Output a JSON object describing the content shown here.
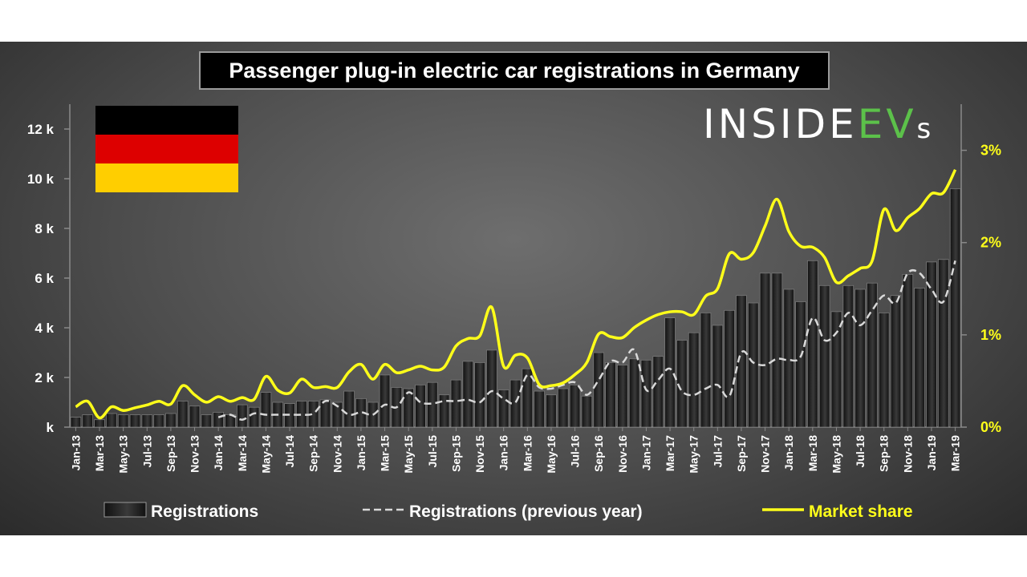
{
  "colors": {
    "bar": "#111111",
    "bar_highlight": "#3a3a3a",
    "market_share": "#ffff1a",
    "previous_year": "#d9d9d9",
    "flag_black": "#000000",
    "flag_red": "#dd0000",
    "flag_gold": "#ffce00",
    "logo_green": "#5cc14a"
  },
  "logo": {
    "part1": "INSIDE",
    "part2": "EV",
    "part3": "s"
  },
  "legend": {
    "registrations": "Registrations",
    "previous_year": "Registrations (previous year)",
    "market_share": "Market share"
  },
  "chart_data": {
    "type": "bar",
    "title": "Passenger plug-in electric car registrations in Germany",
    "xlabel": "",
    "ylabel": "",
    "ylim": [
      0,
      13000
    ],
    "y2lim": [
      0,
      3.5
    ],
    "left_ticks": [
      {
        "value": 0,
        "label": "k"
      },
      {
        "value": 2000,
        "label": "2 k"
      },
      {
        "value": 4000,
        "label": "4 k"
      },
      {
        "value": 6000,
        "label": "6 k"
      },
      {
        "value": 8000,
        "label": "8 k"
      },
      {
        "value": 10000,
        "label": "10 k"
      },
      {
        "value": 12000,
        "label": "12 k"
      }
    ],
    "right_ticks": [
      {
        "value": 0,
        "label": "0%"
      },
      {
        "value": 1,
        "label": "1%"
      },
      {
        "value": 2,
        "label": "2%"
      },
      {
        "value": 3,
        "label": "3%"
      }
    ],
    "x_tick_labels": [
      "Jan-13",
      "Mar-13",
      "May-13",
      "Jul-13",
      "Sep-13",
      "Nov-13",
      "Jan-14",
      "Mar-14",
      "May-14",
      "Jul-14",
      "Sep-14",
      "Nov-14",
      "Jan-15",
      "Mar-15",
      "May-15",
      "Jul-15",
      "Sep-15",
      "Nov-15",
      "Jan-16",
      "Mar-16",
      "May-16",
      "Jul-16",
      "Sep-16",
      "Nov-16",
      "Jan-17",
      "Mar-17",
      "May-17",
      "Jul-17",
      "Sep-17",
      "Nov-17",
      "Jan-18",
      "Mar-18",
      "May-18",
      "Jul-18",
      "Sep-18",
      "Nov-18",
      "Jan-19",
      "Mar-19"
    ],
    "series": [
      {
        "name": "Registrations",
        "type": "bar",
        "axis": "left",
        "values": [
          400,
          500,
          300,
          550,
          500,
          500,
          500,
          500,
          550,
          1050,
          850,
          500,
          600,
          500,
          900,
          800,
          1400,
          1000,
          950,
          1050,
          1050,
          1100,
          1000,
          1450,
          1150,
          1000,
          2100,
          1600,
          1550,
          1700,
          1800,
          1300,
          1900,
          2650,
          2600,
          3100,
          1500,
          1900,
          2350,
          1450,
          1300,
          1550,
          1700,
          1250,
          3000,
          2600,
          2500,
          2750,
          2700,
          2850,
          4400,
          3500,
          3800,
          4600,
          4100,
          4700,
          5300,
          5000,
          6200,
          6200,
          5550,
          5050,
          6700,
          5700,
          4650,
          5700,
          5550,
          5800,
          4600,
          5300,
          6150,
          5600,
          6650,
          6750,
          9600
        ]
      },
      {
        "name": "Registrations (previous year)",
        "type": "line",
        "dashed": true,
        "axis": "left",
        "start_index": 12,
        "values": [
          400,
          500,
          300,
          550,
          500,
          500,
          500,
          500,
          550,
          1050,
          850,
          500,
          600,
          500,
          900,
          800,
          1400,
          1000,
          950,
          1050,
          1050,
          1100,
          1000,
          1450,
          1150,
          1000,
          2100,
          1600,
          1550,
          1700,
          1800,
          1300,
          1900,
          2650,
          2600,
          3100,
          1500,
          1900,
          2350,
          1450,
          1300,
          1550,
          1700,
          1250,
          3000,
          2600,
          2500,
          2750,
          2700,
          2850,
          4400,
          3500,
          3800,
          4600,
          4100,
          4700,
          5300,
          5000,
          6200,
          6200,
          5550,
          5050,
          6700
        ]
      },
      {
        "name": "Market share",
        "type": "line",
        "axis": "right",
        "values": [
          0.22,
          0.28,
          0.1,
          0.22,
          0.18,
          0.21,
          0.24,
          0.28,
          0.25,
          0.45,
          0.35,
          0.27,
          0.33,
          0.28,
          0.32,
          0.3,
          0.55,
          0.4,
          0.37,
          0.52,
          0.43,
          0.44,
          0.43,
          0.6,
          0.68,
          0.52,
          0.68,
          0.59,
          0.62,
          0.66,
          0.62,
          0.65,
          0.88,
          0.96,
          0.99,
          1.3,
          0.66,
          0.78,
          0.75,
          0.46,
          0.45,
          0.48,
          0.57,
          0.7,
          1.01,
          0.98,
          0.97,
          1.08,
          1.16,
          1.22,
          1.25,
          1.25,
          1.22,
          1.42,
          1.5,
          1.88,
          1.82,
          1.89,
          2.18,
          2.47,
          2.12,
          1.96,
          1.95,
          1.84,
          1.57,
          1.64,
          1.72,
          1.8,
          2.36,
          2.13,
          2.27,
          2.37,
          2.53,
          2.54,
          2.79
        ]
      }
    ]
  }
}
